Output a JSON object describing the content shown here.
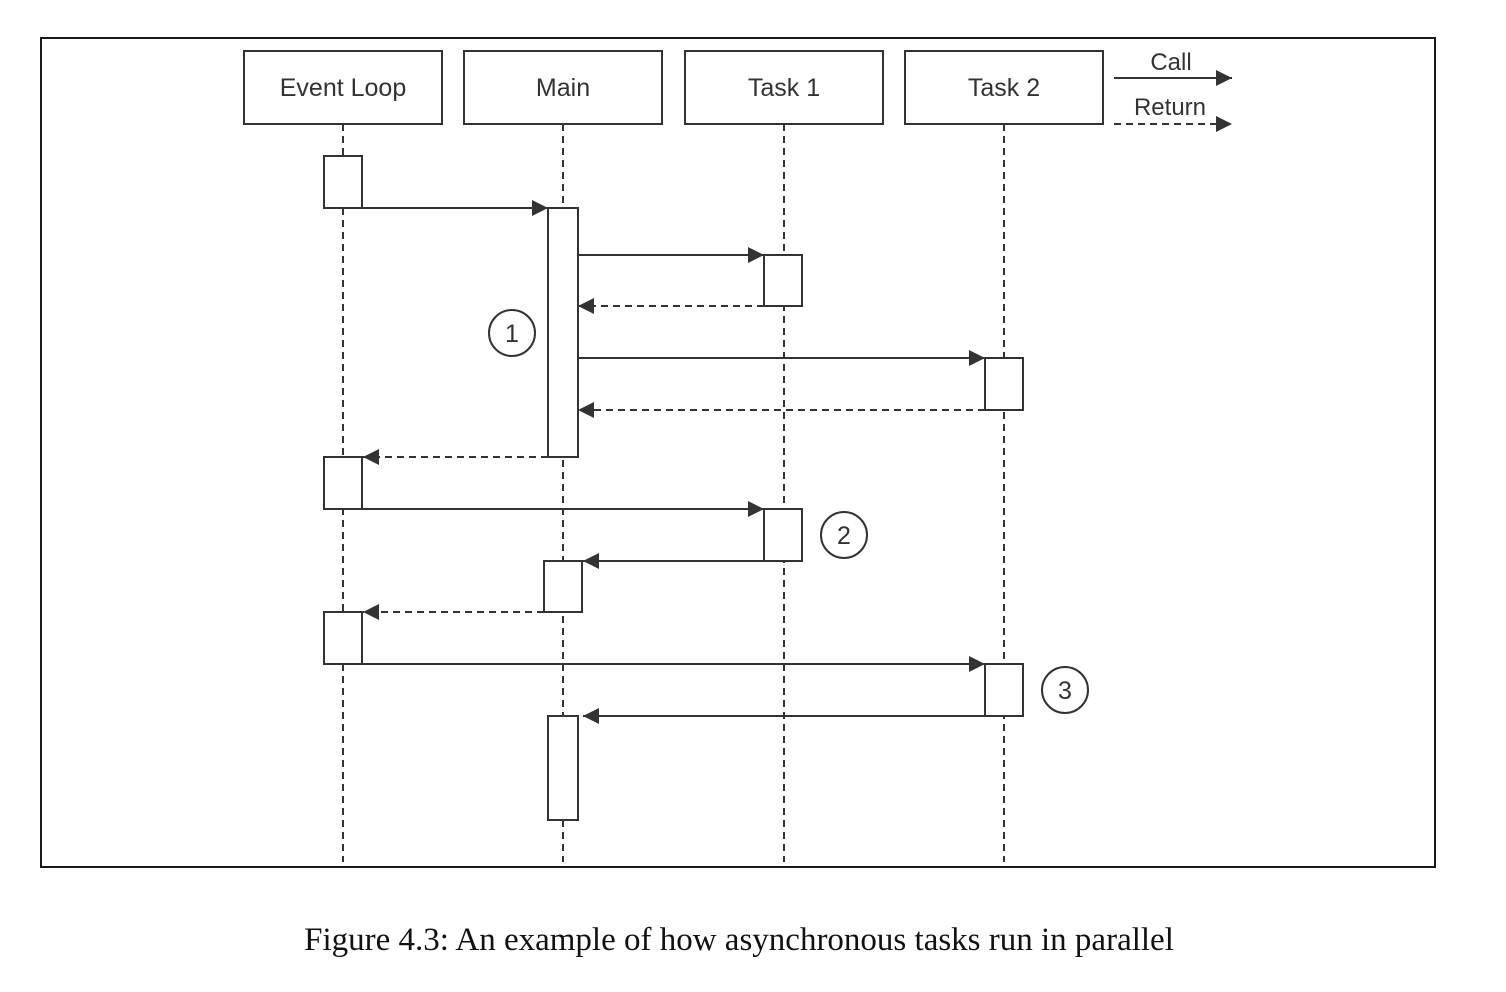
{
  "lanes": [
    {
      "id": "event_loop",
      "label": "Event Loop"
    },
    {
      "id": "main",
      "label": "Main"
    },
    {
      "id": "task1",
      "label": "Task 1"
    },
    {
      "id": "task2",
      "label": "Task 2"
    }
  ],
  "legend": {
    "call_label": "Call",
    "return_label": "Return"
  },
  "markers": [
    {
      "label": "1"
    },
    {
      "label": "2"
    },
    {
      "label": "3"
    }
  ],
  "messages": [
    {
      "from": "event_loop",
      "to": "main",
      "kind": "call"
    },
    {
      "from": "main",
      "to": "task1",
      "kind": "call"
    },
    {
      "from": "task1",
      "to": "main",
      "kind": "return"
    },
    {
      "from": "main",
      "to": "task2",
      "kind": "call"
    },
    {
      "from": "task2",
      "to": "main",
      "kind": "return"
    },
    {
      "from": "main",
      "to": "event_loop",
      "kind": "return"
    },
    {
      "from": "event_loop",
      "to": "task1",
      "kind": "call"
    },
    {
      "from": "task1",
      "to": "main",
      "kind": "call"
    },
    {
      "from": "main",
      "to": "event_loop",
      "kind": "return"
    },
    {
      "from": "event_loop",
      "to": "task2",
      "kind": "call"
    },
    {
      "from": "task2",
      "to": "main",
      "kind": "call"
    }
  ],
  "caption": "Figure 4.3: An example of how asynchronous tasks run in parallel",
  "colors": {
    "line": "#333333",
    "box_fill": "#ffffff",
    "frame": "#1a1a1a"
  }
}
